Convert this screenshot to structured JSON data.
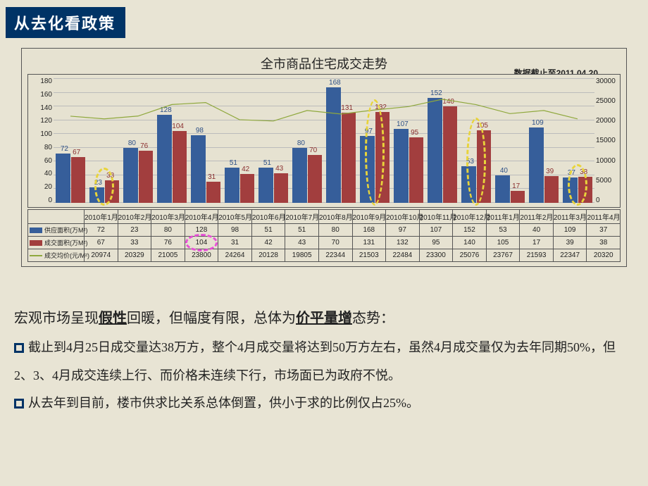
{
  "header": {
    "title": "从去化看政策"
  },
  "chart": {
    "type": "bar+line",
    "title": "全市商品住宅成交走势",
    "cutoff_label": "数据截止至2011.04.20",
    "categories": [
      "2010年1月",
      "2010年2月",
      "2010年3月",
      "2010年4月",
      "2010年5月",
      "2010年6月",
      "2010年7月",
      "2010年8月",
      "2010年9月",
      "2010年10月",
      "2010年11月",
      "2010年12月",
      "2011年1月",
      "2011年2月",
      "2011年3月",
      "2011年4月"
    ],
    "series": [
      {
        "key": "supply",
        "name": "供应面积(万M²)",
        "color": "#365e9a",
        "values": [
          72,
          23,
          80,
          128,
          98,
          51,
          51,
          80,
          168,
          97,
          107,
          152,
          53,
          40,
          109,
          37
        ]
      },
      {
        "key": "deal",
        "name": "成交面积(万M²)",
        "color": "#a23e3e",
        "values": [
          67,
          33,
          76,
          104,
          31,
          42,
          43,
          70,
          131,
          132,
          95,
          140,
          105,
          17,
          39,
          38
        ]
      },
      {
        "key": "price",
        "name": "成交均价(元/M²)",
        "color": "#8fa83d",
        "values": [
          20974,
          20329,
          21005,
          23800,
          24264,
          20128,
          19805,
          22344,
          21503,
          22484,
          23300,
          25076,
          23767,
          21593,
          22347,
          20320
        ]
      }
    ],
    "y_left": {
      "min": 0,
      "max": 180,
      "step": 20
    },
    "y_right": {
      "min": 0,
      "max": 30000,
      "step": 5000
    },
    "background_color": "#e6e2d1",
    "grid_color": "#bbbbbb",
    "bar_label_fontsize": 10,
    "axis_fontsize": 10,
    "title_fontsize": 18,
    "highlight_ellipses": [
      {
        "category_index": 1,
        "color": "#e8d43a"
      },
      {
        "category_index": 9,
        "color": "#e8d43a"
      },
      {
        "category_index": 12,
        "color": "#e8d43a"
      },
      {
        "category_index": 15,
        "color": "#e8d43a"
      }
    ],
    "table_row_highlight": {
      "series": "deal",
      "category_index": 3,
      "color": "#e64fd6"
    }
  },
  "body": {
    "lead_pre": "宏观市场呈现",
    "lead_em1": "假性",
    "lead_mid": "回暖，但幅度有限，总体为",
    "lead_em2": "价平量增",
    "lead_post": "态势：",
    "p1": "截止到4月25日成交量达38万方，整个4月成交量将达到50万方左右，虽然4月成交量仅为去年同期50%，但2、3、4月成交连续上行、而价格未连续下行，市场面已为政府不悦。",
    "p2": "从去年到目前，楼市供求比关系总体倒置，供小于求的比例仅占25%。"
  }
}
